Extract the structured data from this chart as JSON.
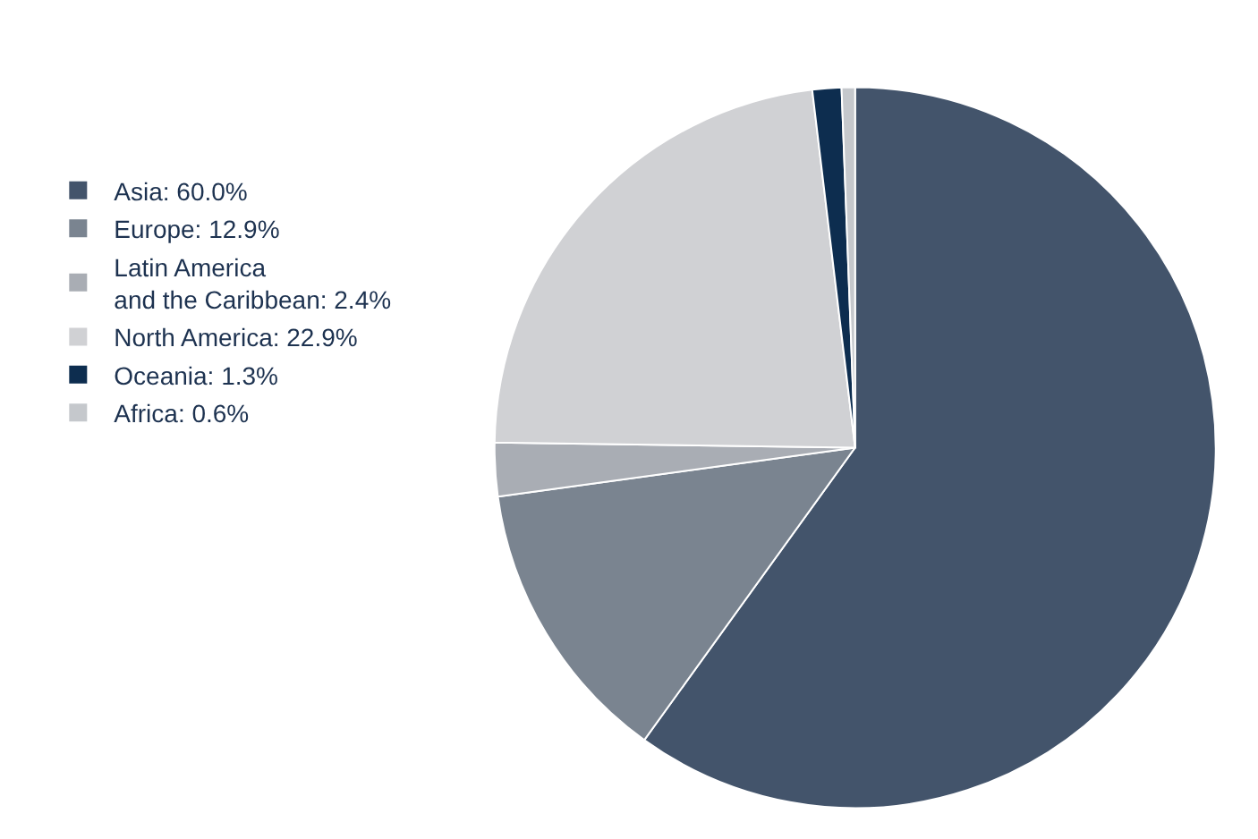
{
  "chart_data": {
    "type": "pie",
    "categories": [
      "Asia: 60.0%",
      "Europe: 12.9%",
      "Latin America\nand the Caribbean: 2.4%",
      "North America: 22.9%",
      "Oceania: 1.3%",
      "Africa: 0.6%"
    ],
    "values": [
      60.0,
      12.9,
      2.4,
      22.9,
      1.3,
      0.6
    ],
    "colors": [
      "#43546b",
      "#7a8490",
      "#a9adb4",
      "#d0d1d4",
      "#0d2d4f",
      "#c5c8cc"
    ],
    "legend": "left"
  }
}
